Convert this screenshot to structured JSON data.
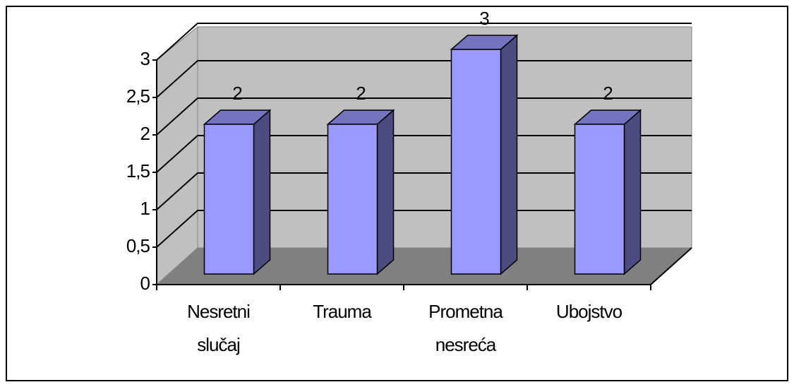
{
  "chart_data": {
    "type": "bar3d",
    "categories": [
      "Nesretni slučaj",
      "Trauma",
      "Prometna nesreća",
      "Ubojstvo"
    ],
    "values": [
      2,
      2,
      3,
      2
    ],
    "color": "#9999ff",
    "ylim": [
      0,
      3
    ],
    "yticks": [
      0,
      {
        "value": 0.5,
        "label": "0,5"
      },
      1,
      {
        "value": 1.5,
        "label": "1,5"
      },
      2,
      {
        "value": 2.5,
        "label": "2,5"
      },
      3
    ],
    "grid": true
  }
}
